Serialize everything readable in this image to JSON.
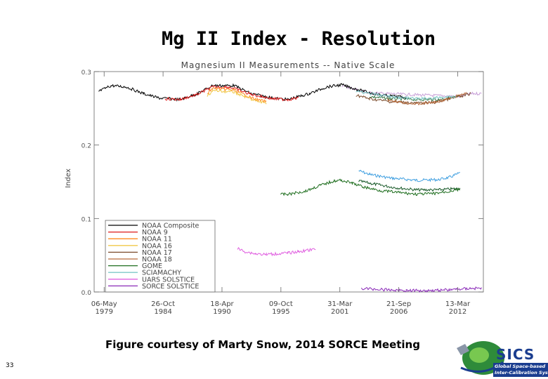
{
  "slide": {
    "title": "Mg II Index - Resolution",
    "caption": "Figure courtesy of Marty Snow, 2014 SORCE Meeting",
    "page_number": "33",
    "logo_text": "SICS",
    "logo_line1": "Global Space-based",
    "logo_line2": "Inter-Calibration System"
  },
  "chart_data": {
    "type": "line",
    "title": "Magnesium II Measurements -- Native Scale",
    "xlabel": "",
    "ylabel": "Index",
    "xlim": [
      "1978-06-01",
      "2014-08-01"
    ],
    "ylim": [
      0.0,
      0.3
    ],
    "x_ticks": [
      {
        "date": "1979-05-06",
        "line1": "06-May",
        "line2": "1979"
      },
      {
        "date": "1984-10-26",
        "line1": "26-Oct",
        "line2": "1984"
      },
      {
        "date": "1990-04-18",
        "line1": "18-Apr",
        "line2": "1990"
      },
      {
        "date": "1995-10-09",
        "line1": "09-Oct",
        "line2": "1995"
      },
      {
        "date": "2001-03-31",
        "line1": "31-Mar",
        "line2": "2001"
      },
      {
        "date": "2006-09-21",
        "line1": "21-Sep",
        "line2": "2006"
      },
      {
        "date": "2012-03-13",
        "line1": "13-Mar",
        "line2": "2012"
      }
    ],
    "y_ticks": [
      {
        "value": 0.0,
        "label": "0.0"
      },
      {
        "value": 0.1,
        "label": "0.1"
      },
      {
        "value": 0.2,
        "label": "0.2"
      },
      {
        "value": 0.3,
        "label": "0.3"
      }
    ],
    "grid": false,
    "legend_position": "bottom-left",
    "series": [
      {
        "name": "NOAA Composite",
        "color": "#000000",
        "points": [
          [
            "1978-11-01",
            0.273
          ],
          [
            "1980-01-01",
            0.281
          ],
          [
            "1981-06-01",
            0.279
          ],
          [
            "1983-01-01",
            0.27
          ],
          [
            "1984-06-01",
            0.264
          ],
          [
            "1986-06-01",
            0.262
          ],
          [
            "1988-01-01",
            0.27
          ],
          [
            "1989-06-01",
            0.281
          ],
          [
            "1991-06-01",
            0.281
          ],
          [
            "1993-01-01",
            0.27
          ],
          [
            "1995-01-01",
            0.264
          ],
          [
            "1996-06-01",
            0.262
          ],
          [
            "1998-06-01",
            0.27
          ],
          [
            "2000-01-01",
            0.279
          ],
          [
            "2001-06-01",
            0.282
          ],
          [
            "2003-01-01",
            0.275
          ],
          [
            "2005-01-01",
            0.268
          ],
          [
            "2007-06-01",
            0.265
          ]
        ]
      },
      {
        "name": "NOAA 9",
        "color": "#dd1a1a",
        "points": [
          [
            "1985-01-01",
            0.263
          ],
          [
            "1986-06-01",
            0.262
          ],
          [
            "1988-01-01",
            0.269
          ],
          [
            "1989-06-01",
            0.279
          ],
          [
            "1991-01-01",
            0.279
          ],
          [
            "1993-01-01",
            0.269
          ],
          [
            "1995-01-01",
            0.263
          ],
          [
            "1996-06-01",
            0.262
          ],
          [
            "1997-06-01",
            0.264
          ]
        ]
      },
      {
        "name": "NOAA 11",
        "color": "#ff8a1e",
        "points": [
          [
            "1988-12-01",
            0.27
          ],
          [
            "1989-06-01",
            0.277
          ],
          [
            "1990-06-01",
            0.276
          ],
          [
            "1991-06-01",
            0.275
          ],
          [
            "1992-06-01",
            0.268
          ],
          [
            "1993-06-01",
            0.262
          ],
          [
            "1994-06-01",
            0.259
          ]
        ]
      },
      {
        "name": "NOAA 16",
        "color": "#f0c84a",
        "points": [
          [
            "1988-12-01",
            0.266
          ],
          [
            "1989-06-01",
            0.274
          ],
          [
            "1990-06-01",
            0.273
          ],
          [
            "1991-06-01",
            0.272
          ],
          [
            "1992-06-01",
            0.266
          ],
          [
            "1993-06-01",
            0.26
          ],
          [
            "1994-06-01",
            0.257
          ]
        ]
      },
      {
        "name": "NOAA 17",
        "color": "#7a4a2a",
        "points": [
          [
            "2002-10-01",
            0.268
          ],
          [
            "2004-01-01",
            0.263
          ],
          [
            "2006-01-01",
            0.259
          ],
          [
            "2008-06-01",
            0.257
          ],
          [
            "2010-01-01",
            0.258
          ],
          [
            "2011-06-01",
            0.263
          ],
          [
            "2012-06-01",
            0.266
          ],
          [
            "2013-06-01",
            0.27
          ]
        ]
      },
      {
        "name": "NOAA 18",
        "color": "#b86a3a",
        "points": [
          [
            "2005-09-01",
            0.262
          ],
          [
            "2007-01-01",
            0.258
          ],
          [
            "2008-06-01",
            0.256
          ],
          [
            "2010-01-01",
            0.258
          ],
          [
            "2011-06-01",
            0.263
          ],
          [
            "2012-06-01",
            0.268
          ],
          [
            "2013-01-01",
            0.272
          ]
        ]
      },
      {
        "name": "GOME",
        "color": "#1f6e1f",
        "points": [
          [
            "1995-10-01",
            0.133
          ],
          [
            "1996-06-01",
            0.133
          ],
          [
            "1998-01-01",
            0.137
          ],
          [
            "1999-06-01",
            0.145
          ],
          [
            "2000-09-01",
            0.151
          ],
          [
            "2001-06-01",
            0.152
          ],
          [
            "2002-06-01",
            0.148
          ],
          [
            "2003-06-01",
            0.143
          ],
          [
            "2005-01-01",
            0.138
          ],
          [
            "2007-01-01",
            0.135
          ],
          [
            "2008-06-01",
            0.133
          ],
          [
            "2010-01-01",
            0.134
          ],
          [
            "2011-06-01",
            0.137
          ],
          [
            "2012-06-01",
            0.14
          ]
        ]
      },
      {
        "name": "SCIAMACHY",
        "color": "#7fc8c8",
        "points": [
          [
            "2002-10-01",
            0.273
          ],
          [
            "2004-06-01",
            0.269
          ],
          [
            "2006-06-01",
            0.265
          ],
          [
            "2008-06-01",
            0.263
          ],
          [
            "2010-01-01",
            0.264
          ],
          [
            "2012-01-01",
            0.266
          ]
        ]
      },
      {
        "name": "UARS SOLSTICE",
        "color": "#e060e0",
        "points": [
          [
            "1991-10-01",
            0.059
          ],
          [
            "1992-06-01",
            0.055
          ],
          [
            "1993-06-01",
            0.052
          ],
          [
            "1994-06-01",
            0.051
          ],
          [
            "1995-06-01",
            0.052
          ],
          [
            "1996-06-01",
            0.053
          ],
          [
            "1997-06-01",
            0.055
          ],
          [
            "1998-06-01",
            0.057
          ],
          [
            "1999-01-01",
            0.058
          ]
        ]
      },
      {
        "name": "SORCE SOLSTICE",
        "color": "#8a2ab8",
        "points": [
          [
            "2003-04-01",
            0.005
          ],
          [
            "2005-06-01",
            0.003
          ],
          [
            "2007-06-01",
            0.002
          ],
          [
            "2009-06-01",
            0.002
          ],
          [
            "2011-06-01",
            0.003
          ],
          [
            "2013-06-01",
            0.005
          ],
          [
            "2014-06-01",
            0.005
          ]
        ]
      }
    ],
    "extra_traces": [
      {
        "color": "#3d9ee0",
        "points": [
          [
            "2003-01-01",
            0.165
          ],
          [
            "2004-01-01",
            0.16
          ],
          [
            "2006-01-01",
            0.155
          ],
          [
            "2008-06-01",
            0.152
          ],
          [
            "2010-06-01",
            0.153
          ],
          [
            "2011-06-01",
            0.156
          ],
          [
            "2012-06-01",
            0.162
          ]
        ]
      },
      {
        "color": "#1a5a2a",
        "points": [
          [
            "2003-01-01",
            0.151
          ],
          [
            "2004-06-01",
            0.147
          ],
          [
            "2006-06-01",
            0.142
          ],
          [
            "2008-06-01",
            0.139
          ],
          [
            "2010-06-01",
            0.139
          ],
          [
            "2012-06-01",
            0.141
          ]
        ]
      },
      {
        "color": "#c8a0d8",
        "points": [
          [
            "2001-06-01",
            0.281
          ],
          [
            "2002-06-01",
            0.277
          ],
          [
            "2004-01-01",
            0.271
          ],
          [
            "2012-06-01",
            0.266
          ],
          [
            "2013-06-01",
            0.27
          ],
          [
            "2014-06-01",
            0.27
          ]
        ]
      },
      {
        "color": "#3a7a4a",
        "points": [
          [
            "2004-01-01",
            0.266
          ],
          [
            "2006-01-01",
            0.263
          ],
          [
            "2008-06-01",
            0.262
          ],
          [
            "2010-06-01",
            0.262
          ],
          [
            "2012-06-01",
            0.266
          ]
        ]
      }
    ]
  }
}
